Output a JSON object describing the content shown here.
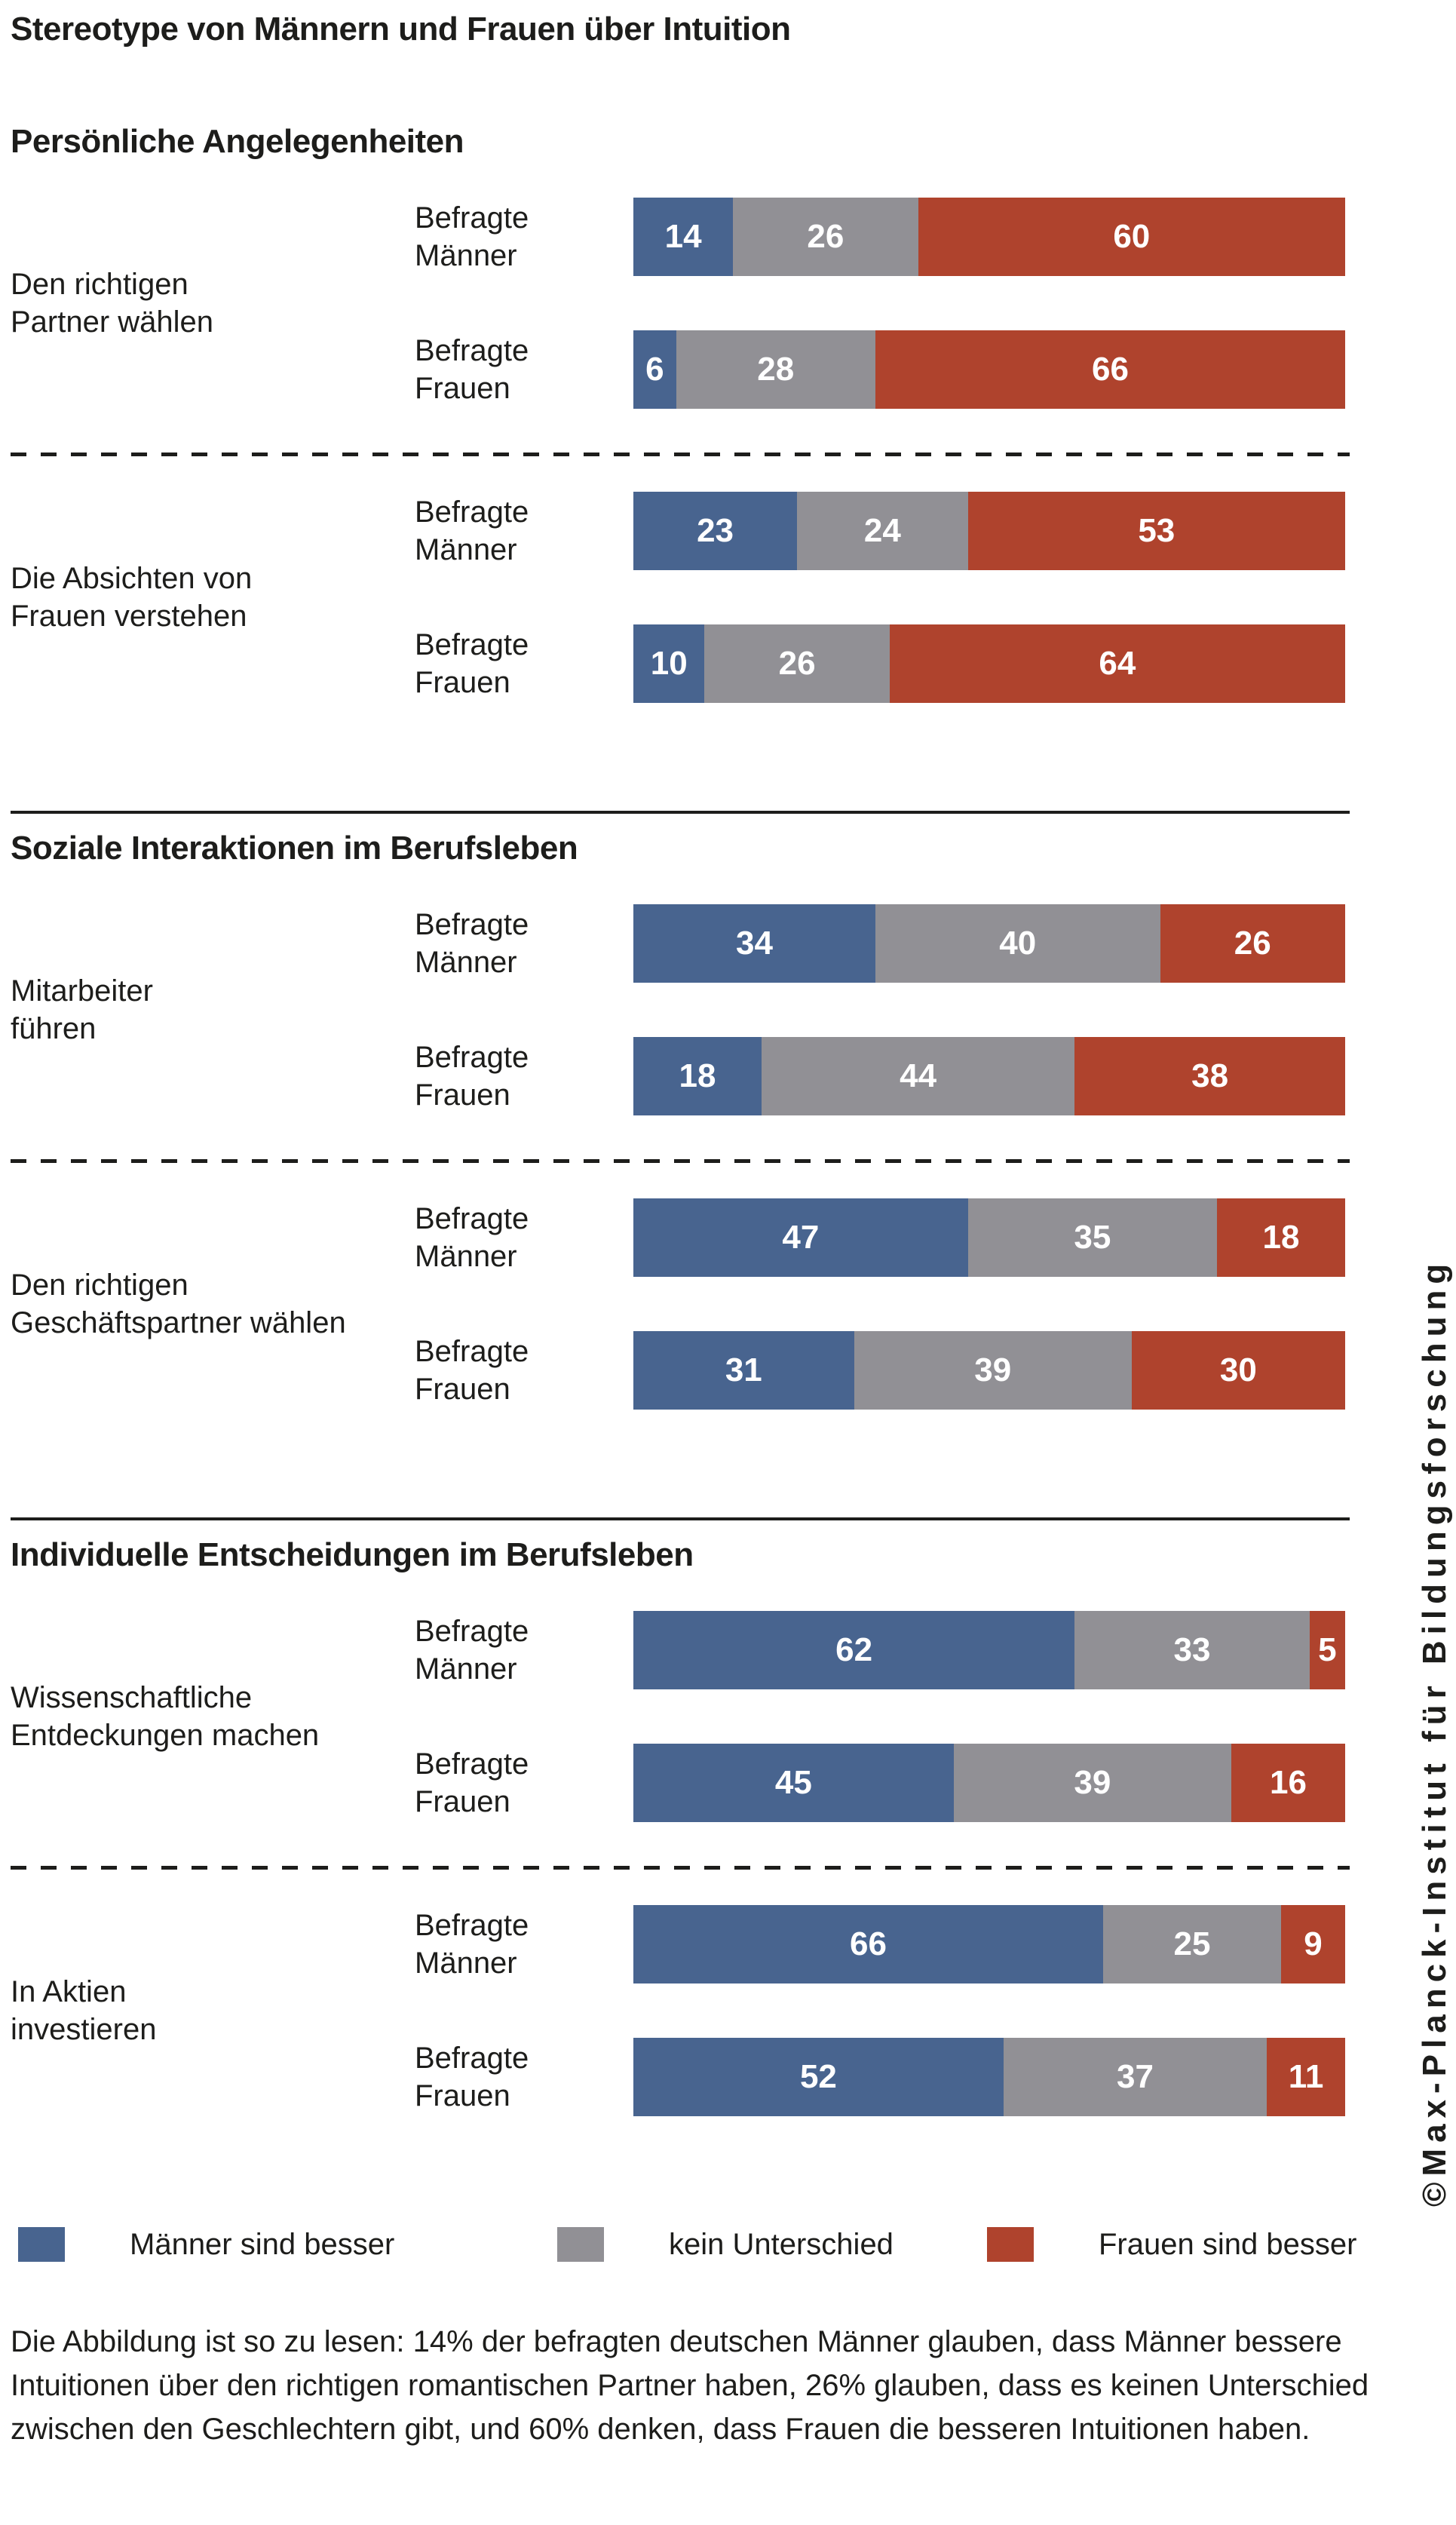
{
  "page": {
    "title": "Stereotype von Männern und Frauen über Intuition",
    "caption": "Die Abbildung ist so zu lesen: 14% der befragten deutschen Männer glauben, dass Männer bessere Intuitionen über den richtigen romantischen Partner haben, 26% glauben, dass es keinen Unterschied zwischen den Geschlechtern gibt, und 60% denken, dass Frauen die besseren Intuitionen haben.",
    "credit": "©Max-Planck-Institut für Bildungsforschung"
  },
  "colors": {
    "men_better": "#48648F",
    "no_difference": "#919095",
    "women_better": "#AF432D",
    "text": "#1D1D1B",
    "value_text": "#FFFFFF"
  },
  "chart_data": {
    "type": "bar",
    "variant": "horizontal-stacked",
    "unit": "percent",
    "axis_range": [
      0,
      100
    ],
    "grid": false,
    "legend_position": "bottom",
    "series": [
      {
        "label": "Männer sind besser",
        "color_key": "men_better",
        "name": "men-better"
      },
      {
        "label": "kein Unterschied",
        "color_key": "no_difference",
        "name": "no-difference"
      },
      {
        "label": "Frauen sind besser",
        "color_key": "women_better",
        "name": "women-better"
      }
    ],
    "sections": [
      {
        "header": "Persönliche Angelegenheiten",
        "groups": [
          {
            "label": "Den richtigen\nPartner wählen",
            "rows": [
              {
                "label": "Befragte\nMänner",
                "values": [
                  14,
                  26,
                  60
                ]
              },
              {
                "label": "Befragte\nFrauen",
                "values": [
                  6,
                  28,
                  66
                ]
              }
            ]
          },
          {
            "label": "Die Absichten von\nFrauen verstehen",
            "rows": [
              {
                "label": "Befragte\nMänner",
                "values": [
                  23,
                  24,
                  53
                ]
              },
              {
                "label": "Befragte\nFrauen",
                "values": [
                  10,
                  26,
                  64
                ]
              }
            ]
          }
        ]
      },
      {
        "header": "Soziale Interaktionen im Berufsleben",
        "groups": [
          {
            "label": "Mitarbeiter\nführen",
            "rows": [
              {
                "label": "Befragte\nMänner",
                "values": [
                  34,
                  40,
                  26
                ]
              },
              {
                "label": "Befragte\nFrauen",
                "values": [
                  18,
                  44,
                  38
                ]
              }
            ]
          },
          {
            "label": "Den richtigen\nGeschäftspartner wählen",
            "rows": [
              {
                "label": "Befragte\nMänner",
                "values": [
                  47,
                  35,
                  18
                ]
              },
              {
                "label": "Befragte\nFrauen",
                "values": [
                  31,
                  39,
                  30
                ]
              }
            ]
          }
        ]
      },
      {
        "header": "Individuelle Entscheidungen im Berufsleben",
        "groups": [
          {
            "label": "Wissenschaftliche\nEntdeckungen machen",
            "rows": [
              {
                "label": "Befragte\nMänner",
                "values": [
                  62,
                  33,
                  5
                ]
              },
              {
                "label": "Befragte\nFrauen",
                "values": [
                  45,
                  39,
                  16
                ]
              }
            ]
          },
          {
            "label": "In Aktien\ninvestieren",
            "rows": [
              {
                "label": "Befragte\nMänner",
                "values": [
                  66,
                  25,
                  9
                ]
              },
              {
                "label": "Befragte\nFrauen",
                "values": [
                  52,
                  37,
                  11
                ]
              }
            ]
          }
        ]
      }
    ]
  }
}
